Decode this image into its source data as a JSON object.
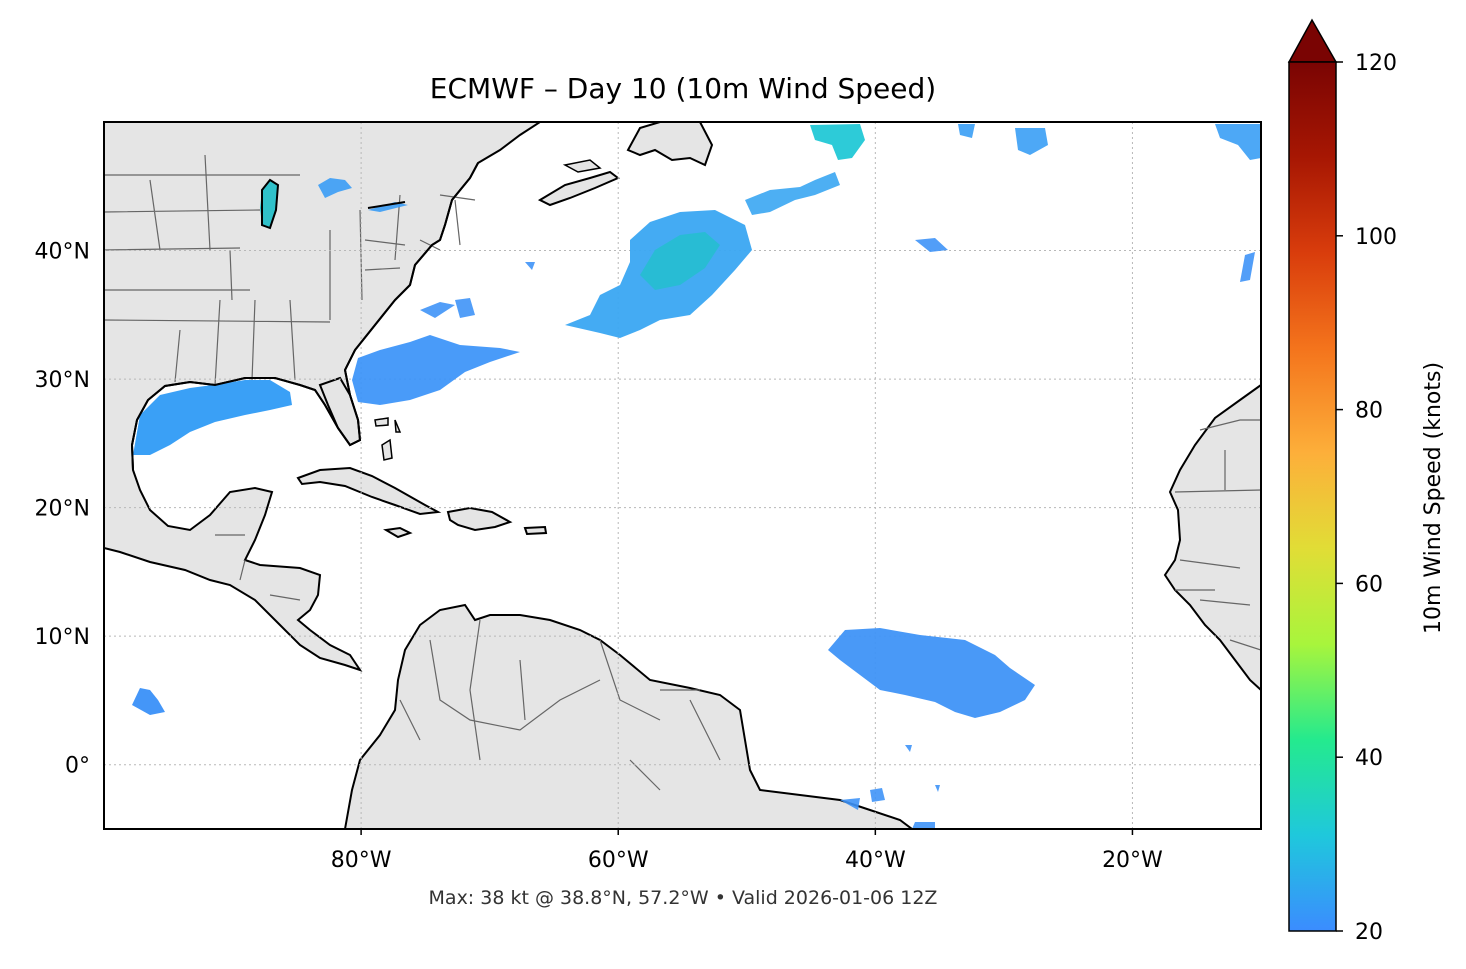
{
  "title": "ECMWF – Day 10 (10m Wind Speed)",
  "footer": "Max: 38 kt @ 38.8°N, 57.2°W • Valid 2026-01-06 12Z",
  "map": {
    "lon_range": [
      -100,
      -10
    ],
    "lat_range": [
      -5,
      50
    ],
    "lon_ticks": [
      {
        "value": -80,
        "label": "80°W"
      },
      {
        "value": -60,
        "label": "60°W"
      },
      {
        "value": -40,
        "label": "40°W"
      },
      {
        "value": -20,
        "label": "20°W"
      }
    ],
    "lat_ticks": [
      {
        "value": 40,
        "label": "40°N"
      },
      {
        "value": 30,
        "label": "30°N"
      },
      {
        "value": 20,
        "label": "20°N"
      },
      {
        "value": 10,
        "label": "10°N"
      },
      {
        "value": 0,
        "label": "0°"
      }
    ],
    "land_color": "#e5e5e5",
    "coast_color": "#000000",
    "border_color": "#666666",
    "grid": true
  },
  "colorbar": {
    "label": "10m Wind Speed (knots)",
    "min": 20,
    "max": 120,
    "extend": "max",
    "ticks": [
      "20",
      "40",
      "60",
      "80",
      "100",
      "120"
    ],
    "tick_values": [
      20,
      40,
      60,
      80,
      100,
      120
    ],
    "colormap": [
      "#3b8cff",
      "#1fc8dc",
      "#24ea8e",
      "#a8f53c",
      "#e1dd36",
      "#fdaf3a",
      "#f4741c",
      "#d93d0c",
      "#a71703",
      "#7a0403"
    ]
  },
  "wind_patches": [
    {
      "name": "gulf-of-mexico",
      "lon": -92,
      "lat": 27.5,
      "wind_kt": 26
    },
    {
      "name": "north-atlantic-main",
      "lon": -55,
      "lat": 38.5,
      "wind_kt": 34
    },
    {
      "name": "southeast-coast",
      "lon": -73,
      "lat": 31,
      "wind_kt": 24
    },
    {
      "name": "tropical-atlantic",
      "lon": -36,
      "lat": 7.5,
      "wind_kt": 24
    },
    {
      "name": "great-lakes",
      "lon": -87,
      "lat": 43.5,
      "wind_kt": 30
    },
    {
      "name": "eastern-pacific",
      "lon": -99,
      "lat": 5,
      "wind_kt": 22
    },
    {
      "name": "northeast-atlantic-a",
      "lon": -42,
      "lat": 49,
      "wind_kt": 30
    },
    {
      "name": "northeast-atlantic-b",
      "lon": -14,
      "lat": 49,
      "wind_kt": 24
    }
  ],
  "max_point": {
    "lat": 38.8,
    "lon": -57.2,
    "wind_kt": 38
  }
}
